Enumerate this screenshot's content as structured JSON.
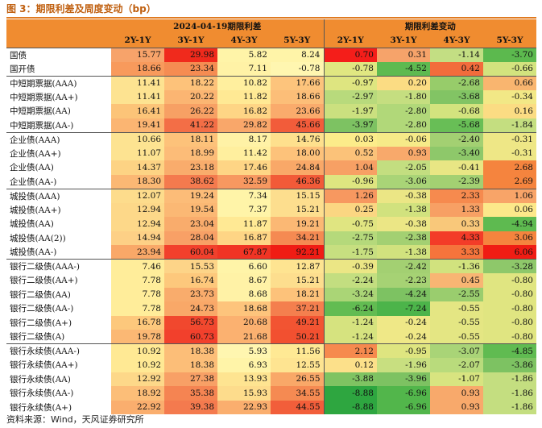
{
  "title": "图 3：期限利差及周度变动（bp）",
  "header": {
    "left_group": "2024-04-19期限利差",
    "right_group": "期限利差变动",
    "columns": [
      "2Y-1Y",
      "3Y-1Y",
      "4Y-3Y",
      "5Y-3Y"
    ]
  },
  "groups": [
    {
      "rows": [
        {
          "label": "国债",
          "spread": [
            "15.77",
            "29.98",
            "5.82",
            "8.24"
          ],
          "change": [
            "0.70",
            "0.31",
            "-1.14",
            "-3.70"
          ],
          "spread_colors": [
            "#f7a36a",
            "#f02a1c",
            "#fff4a8",
            "#fff4a8"
          ],
          "change_colors": [
            "#f41e1a",
            "#f6a36a",
            "#c3de83",
            "#5cb94e"
          ]
        },
        {
          "label": "国开债",
          "spread": [
            "18.66",
            "23.34",
            "7.11",
            "-0.78"
          ],
          "change": [
            "-0.78",
            "-4.52",
            "0.42",
            "-0.66"
          ],
          "spread_colors": [
            "#f89a5c",
            "#f58c52",
            "#fff2a6",
            "#fff6b0"
          ],
          "change_colors": [
            "#e0e781",
            "#5eba50",
            "#f26c3c",
            "#d3e37e"
          ]
        }
      ]
    },
    {
      "rows": [
        {
          "label": "中短期票据(AAA)",
          "spread": [
            "11.41",
            "18.22",
            "10.82",
            "17.66"
          ],
          "change": [
            "-0.97",
            "0.20",
            "-2.68",
            "0.66"
          ],
          "spread_colors": [
            "#fde391",
            "#fdc27a",
            "#ffef9e",
            "#fdc47c"
          ],
          "change_colors": [
            "#dee580",
            "#fbdc83",
            "#97cc6a",
            "#f9b56f"
          ]
        },
        {
          "label": "中短期票据(AA+)",
          "spread": [
            "11.41",
            "20.22",
            "11.82",
            "18.66"
          ],
          "change": [
            "-2.97",
            "-1.80",
            "-3.68",
            "-0.34"
          ],
          "spread_colors": [
            "#fde391",
            "#fbb572",
            "#ffe994",
            "#fcbe78"
          ],
          "change_colors": [
            "#b8da7c",
            "#c5de80",
            "#82c464",
            "#f2e886"
          ]
        },
        {
          "label": "中短期票据(AA)",
          "spread": [
            "16.41",
            "26.22",
            "16.82",
            "23.66"
          ],
          "change": [
            "-1.97",
            "-2.80",
            "-0.68",
            "0.16"
          ],
          "spread_colors": [
            "#fcc478",
            "#f7a064",
            "#fed585",
            "#faab6c"
          ],
          "change_colors": [
            "#cbe07f",
            "#b1d879",
            "#d3e37e",
            "#fbdc83"
          ]
        },
        {
          "label": "中短期票据(AA-)",
          "spread": [
            "19.41",
            "41.22",
            "29.82",
            "45.66"
          ],
          "change": [
            "-3.97",
            "-2.80",
            "-5.68",
            "-1.84"
          ],
          "spread_colors": [
            "#fbb572",
            "#f36e46",
            "#f9a76a",
            "#f25c3a"
          ],
          "change_colors": [
            "#7dc262",
            "#b1d879",
            "#68be56",
            "#c4de80"
          ]
        }
      ]
    },
    {
      "rows": [
        {
          "label": "企业债(AAA)",
          "spread": [
            "10.66",
            "18.11",
            "8.17",
            "14.76"
          ],
          "change": [
            "0.03",
            "-0.06",
            "-2.40",
            "-0.31"
          ],
          "spread_colors": [
            "#fde391",
            "#fdc27a",
            "#fff2a6",
            "#fee08d"
          ],
          "change_colors": [
            "#fcec8a",
            "#f6ea88",
            "#a3d072",
            "#eee786"
          ]
        },
        {
          "label": "企业债(AA+)",
          "spread": [
            "11.07",
            "18.99",
            "11.42",
            "18.00"
          ],
          "change": [
            "0.52",
            "0.93",
            "-3.40",
            "-0.31"
          ],
          "spread_colors": [
            "#fde391",
            "#fcbc78",
            "#ffef9e",
            "#fdc27a"
          ],
          "change_colors": [
            "#fbc279",
            "#f8a96b",
            "#8ec86a",
            "#eee786"
          ]
        },
        {
          "label": "企业债(AA)",
          "spread": [
            "14.37",
            "23.18",
            "17.46",
            "24.84"
          ],
          "change": [
            "1.04",
            "-2.05",
            "-0.41",
            "2.68"
          ],
          "spread_colors": [
            "#fdd384",
            "#f9ac6c",
            "#fed585",
            "#f9a868"
          ],
          "change_colors": [
            "#f7a064",
            "#c3de80",
            "#e8e684",
            "#f5843e"
          ]
        },
        {
          "label": "企业债(AA-)",
          "spread": [
            "18.30",
            "38.62",
            "32.59",
            "46.36"
          ],
          "change": [
            "-0.96",
            "-3.06",
            "-2.39",
            "2.69"
          ],
          "spread_colors": [
            "#fbb874",
            "#f47a4e",
            "#f79860",
            "#f25a38"
          ],
          "change_colors": [
            "#dee580",
            "#a9d477",
            "#a3d072",
            "#f5843e"
          ]
        }
      ]
    },
    {
      "rows": [
        {
          "label": "城投债(AAA)",
          "spread": [
            "12.07",
            "19.24",
            "7.34",
            "15.15"
          ],
          "change": [
            "1.26",
            "-0.38",
            "2.33",
            "1.06"
          ],
          "spread_colors": [
            "#fddc8c",
            "#fcbc78",
            "#fff4a8",
            "#fdde8e"
          ],
          "change_colors": [
            "#f79860",
            "#ebe685",
            "#f68a4e",
            "#f8a468"
          ]
        },
        {
          "label": "城投债(AA+)",
          "spread": [
            "12.94",
            "19.54",
            "7.37",
            "15.21"
          ],
          "change": [
            "0.25",
            "-1.38",
            "1.33",
            "0.06"
          ],
          "spread_colors": [
            "#fdd889",
            "#fbb874",
            "#fff4a8",
            "#fdde8e"
          ],
          "change_colors": [
            "#fbd682",
            "#d1e27e",
            "#f7a064",
            "#fce88a"
          ]
        },
        {
          "label": "城投债(AA)",
          "spread": [
            "12.94",
            "23.04",
            "11.87",
            "19.21"
          ],
          "change": [
            "-0.75",
            "-0.38",
            "0.33",
            "-4.94"
          ],
          "spread_colors": [
            "#fdd889",
            "#f9ac6c",
            "#ffe994",
            "#fbb874"
          ],
          "change_colors": [
            "#e0e581",
            "#ebe685",
            "#f9c87a",
            "#5eba50"
          ]
        },
        {
          "label": "城投债(AA(2))",
          "spread": [
            "14.94",
            "28.04",
            "16.87",
            "34.21"
          ],
          "change": [
            "-2.75",
            "-2.38",
            "4.33",
            "3.06"
          ],
          "spread_colors": [
            "#fdd086",
            "#f8a066",
            "#fed585",
            "#f58a52"
          ],
          "change_colors": [
            "#b5d97b",
            "#a3d072",
            "#f33c28",
            "#f5843e"
          ]
        },
        {
          "label": "城投债(AA-)",
          "spread": [
            "23.94",
            "60.04",
            "67.87",
            "92.21"
          ],
          "change": [
            "-1.75",
            "-1.38",
            "3.33",
            "6.06"
          ],
          "spread_colors": [
            "#f9a868",
            "#f2402c",
            "#f13424",
            "#f01c14"
          ],
          "change_colors": [
            "#c7df80",
            "#d1e27e",
            "#f5743c",
            "#f01c14"
          ]
        }
      ]
    },
    {
      "rows": [
        {
          "label": "银行二级债(AAA-)",
          "spread": [
            "7.46",
            "15.53",
            "6.60",
            "12.87"
          ],
          "change": [
            "-0.39",
            "-2.42",
            "-1.36",
            "-3.28"
          ],
          "spread_colors": [
            "#ffed9a",
            "#fdd488",
            "#fff4a8",
            "#fee491"
          ],
          "change_colors": [
            "#ebe685",
            "#a3d072",
            "#d1e27e",
            "#8ec86a"
          ]
        },
        {
          "label": "银行二级债(AA+)",
          "spread": [
            "7.78",
            "16.74",
            "8.67",
            "15.21"
          ],
          "change": [
            "-2.24",
            "-2.23",
            "0.45",
            "-0.80"
          ],
          "spread_colors": [
            "#ffed9a",
            "#fdc87c",
            "#fff2a6",
            "#fdde8e"
          ],
          "change_colors": [
            "#c3de80",
            "#a6d274",
            "#f8b573",
            "#e0e581"
          ]
        },
        {
          "label": "银行二级债(AA)",
          "spread": [
            "7.78",
            "23.73",
            "8.68",
            "18.21"
          ],
          "change": [
            "-3.24",
            "-4.24",
            "-2.55",
            "-0.80"
          ],
          "spread_colors": [
            "#ffed9a",
            "#f9ac6c",
            "#fff2a6",
            "#fdc27a"
          ],
          "change_colors": [
            "#aad576",
            "#7dc262",
            "#9acd6e",
            "#e0e581"
          ]
        },
        {
          "label": "银行二级债(AA-)",
          "spread": [
            "7.78",
            "24.73",
            "18.68",
            "37.21"
          ],
          "change": [
            "-6.24",
            "-7.24",
            "-0.55",
            "-0.80"
          ],
          "spread_colors": [
            "#ffed9a",
            "#f9a868",
            "#fdc47c",
            "#f47f4e"
          ],
          "change_colors": [
            "#62bc52",
            "#4cb44a",
            "#e4e683",
            "#e0e581"
          ]
        },
        {
          "label": "银行二级债(A+)",
          "spread": [
            "16.78",
            "56.73",
            "20.68",
            "49.21"
          ],
          "change": [
            "-1.24",
            "-0.24",
            "-0.55",
            "-0.80"
          ],
          "spread_colors": [
            "#fdc87c",
            "#f1482e",
            "#fbb170",
            "#f25432"
          ],
          "change_colors": [
            "#d6e37f",
            "#efe887",
            "#e4e683",
            "#e0e581"
          ]
        },
        {
          "label": "银行二级债(A)",
          "spread": [
            "19.78",
            "60.73",
            "21.68",
            "50.21"
          ],
          "change": [
            "-1.24",
            "-0.24",
            "-0.55",
            "-0.80"
          ],
          "spread_colors": [
            "#fbb874",
            "#f2402c",
            "#fbb170",
            "#f25030"
          ],
          "change_colors": [
            "#d6e37f",
            "#efe887",
            "#e4e683",
            "#e0e581"
          ]
        }
      ]
    },
    {
      "rows": [
        {
          "label": "银行永续债(AAA-)",
          "spread": [
            "10.92",
            "18.38",
            "5.93",
            "11.56"
          ],
          "change": [
            "2.12",
            "-0.95",
            "-3.07",
            "-4.85"
          ],
          "spread_colors": [
            "#ffe994",
            "#fcbe78",
            "#fff6b0",
            "#ffe994"
          ],
          "change_colors": [
            "#f68a4e",
            "#dee580",
            "#a9d477",
            "#60bb51"
          ]
        },
        {
          "label": "银行永续债(AA+)",
          "spread": [
            "10.92",
            "18.38",
            "6.93",
            "12.55"
          ],
          "change": [
            "0.12",
            "-1.96",
            "-2.07",
            "-3.86"
          ],
          "spread_colors": [
            "#ffe994",
            "#fcbe78",
            "#fff4a8",
            "#fee491"
          ],
          "change_colors": [
            "#fce08a",
            "#c8df80",
            "#b9db7c",
            "#7dc262"
          ]
        },
        {
          "label": "银行永续债(AA)",
          "spread": [
            "12.92",
            "27.38",
            "13.93",
            "26.55"
          ],
          "change": [
            "-3.88",
            "-3.96",
            "-1.07",
            "-1.86"
          ],
          "spread_colors": [
            "#fdd889",
            "#f8a066",
            "#fee491",
            "#f9a868"
          ],
          "change_colors": [
            "#7fc362",
            "#7dc262",
            "#d8e480",
            "#c4de80"
          ]
        },
        {
          "label": "银行永续债(AA-)",
          "spread": [
            "18.92",
            "35.38",
            "15.93",
            "34.55"
          ],
          "change": [
            "-8.88",
            "-6.96",
            "0.93",
            "-1.86"
          ],
          "spread_colors": [
            "#fcbe78",
            "#f58452",
            "#fddc8c",
            "#f58a52"
          ],
          "change_colors": [
            "#2ea640",
            "#52b64b",
            "#f8a96b",
            "#c4de80"
          ]
        },
        {
          "label": "银行永续债(A+)",
          "spread": [
            "22.92",
            "39.38",
            "22.93",
            "44.55"
          ],
          "change": [
            "-8.88",
            "-6.96",
            "0.93",
            "-1.86"
          ],
          "spread_colors": [
            "#faae6e",
            "#f47a4e",
            "#faae6e",
            "#f25e3a"
          ],
          "change_colors": [
            "#2ea640",
            "#52b64b",
            "#f8a96b",
            "#c4de80"
          ]
        }
      ]
    }
  ],
  "source": "资料来源：Wind，天风证券研究所"
}
